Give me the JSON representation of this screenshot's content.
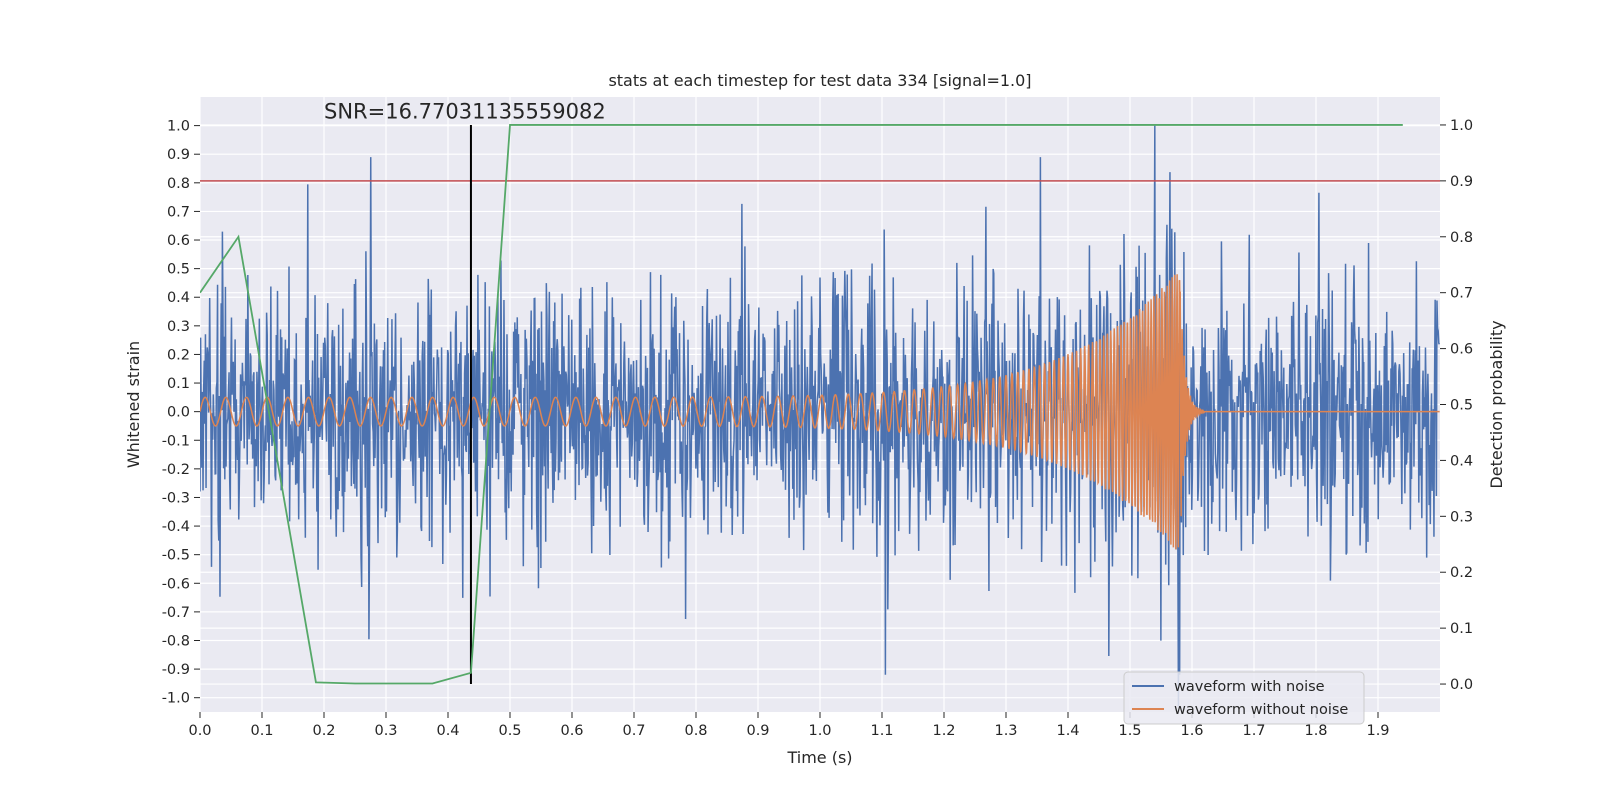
{
  "chart_data": {
    "type": "line",
    "title": "stats at each timestep for test data 334 [signal=1.0]",
    "xlabel": "Time (s)",
    "ylabel_left": "Whitened strain",
    "ylabel_right": "Detection probability",
    "annotation": "SNR=16.77031135559082",
    "xlim": [
      0.0,
      2.0
    ],
    "ylim_left": [
      -1.05,
      1.1
    ],
    "ylim_right": [
      -0.05,
      1.05
    ],
    "xticks": [
      "0.0",
      "0.1",
      "0.2",
      "0.3",
      "0.4",
      "0.5",
      "0.6",
      "0.7",
      "0.8",
      "0.9",
      "1.0",
      "1.1",
      "1.2",
      "1.3",
      "1.4",
      "1.5",
      "1.6",
      "1.7",
      "1.8",
      "1.9"
    ],
    "yticks_left": [
      "1.0",
      "0.9",
      "0.8",
      "0.7",
      "0.6",
      "0.5",
      "0.4",
      "0.3",
      "0.2",
      "0.1",
      "0.0",
      "-0.1",
      "-0.2",
      "-0.3",
      "-0.4",
      "-0.5",
      "-0.6",
      "-0.7",
      "-0.8",
      "-0.9",
      "-1.0"
    ],
    "yticks_right": [
      "1.0",
      "0.9",
      "0.8",
      "0.7",
      "0.6",
      "0.5",
      "0.4",
      "0.3",
      "0.2",
      "0.1",
      "0.0"
    ],
    "grid": true,
    "legend_position": "lower-right",
    "legend": [
      "waveform with noise",
      "waveform without noise"
    ],
    "colors": {
      "noisy": "#4c72b0",
      "clean": "#dd8452",
      "probability": "#55a868",
      "threshold": "#c44e52",
      "marker": "#000000",
      "plot_bg": "#eaeaf2",
      "grid": "#ffffff"
    },
    "noisy_waveform": {
      "name": "waveform with noise",
      "sample_rate": 1024,
      "std": 0.22,
      "peaks": [
        [
          0.275,
          0.89
        ],
        [
          1.355,
          0.89
        ],
        [
          1.54,
          1.0
        ],
        [
          1.105,
          -0.92
        ],
        [
          1.58,
          -0.92
        ]
      ]
    },
    "clean_waveform": {
      "name": "waveform without noise",
      "amp_start": 0.05,
      "amp_peak": 0.5,
      "freq_start": 30,
      "freq_end": 260,
      "merger_time": 1.58,
      "ringdown_end": 1.62
    },
    "probability": {
      "x": [
        0.0,
        0.062,
        0.187,
        0.25,
        0.375,
        0.437,
        0.5,
        0.562,
        0.625,
        1.0,
        1.5,
        1.94
      ],
      "y": [
        0.7,
        0.8,
        0.003,
        0.001,
        0.001,
        0.02,
        1.0,
        1.0,
        1.0,
        1.0,
        1.0,
        1.0
      ]
    },
    "threshold": 0.9,
    "marker_time": 0.437
  }
}
